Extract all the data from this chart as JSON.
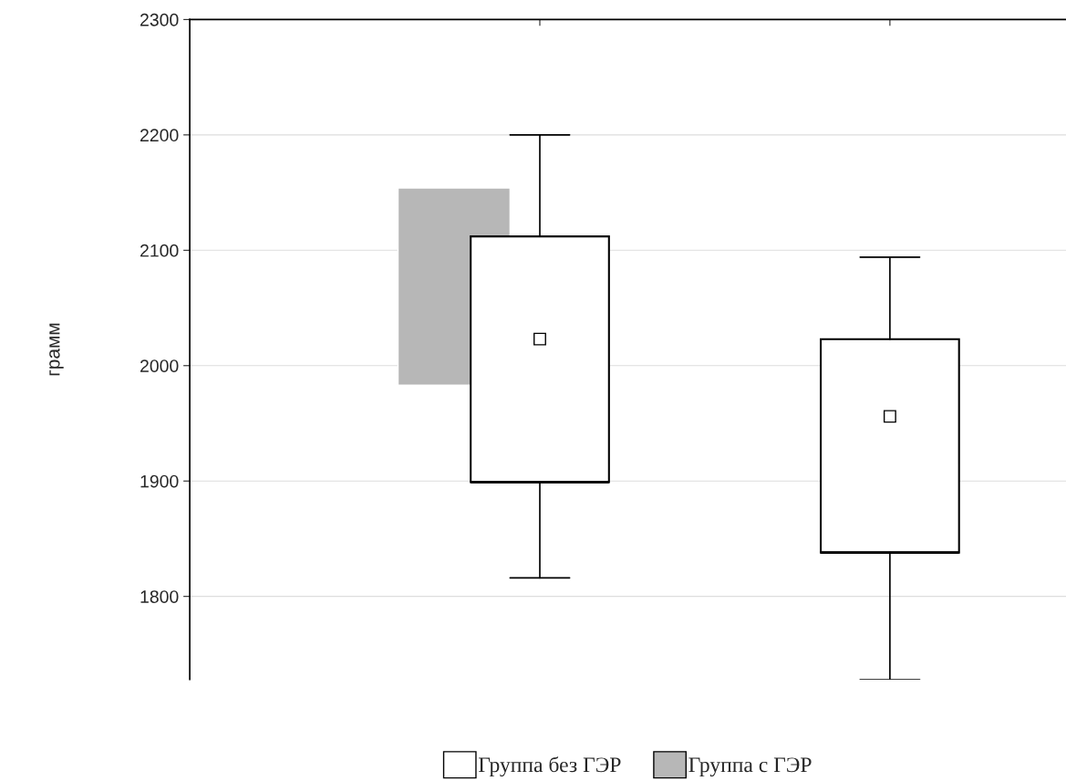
{
  "chart_data": {
    "type": "box",
    "ylabel": "грамм",
    "categories": [
      null,
      null
    ],
    "series": [
      {
        "name": "Группа без ГЭР",
        "color": "#ffffff",
        "boxes": [
          {
            "low": 1816,
            "q1": 1899,
            "median": 1899,
            "q3": 2112,
            "high": 2200,
            "mean": 2023
          },
          {
            "low": 1728,
            "q1": 1838,
            "median": 1838,
            "q3": 2023,
            "high": 2094,
            "mean": 1956
          }
        ]
      },
      {
        "name": "Группа с ГЭР",
        "type": "bar",
        "color": "#b7b7b7",
        "values": [
          171,
          null
        ],
        "base": [
          1983,
          null
        ]
      }
    ],
    "ylim": [
      1728,
      2300
    ],
    "yticks": [
      1800,
      1900,
      2000,
      2100,
      2200,
      2300
    ],
    "grid": "y",
    "legend": "bottom",
    "marker": "square"
  }
}
